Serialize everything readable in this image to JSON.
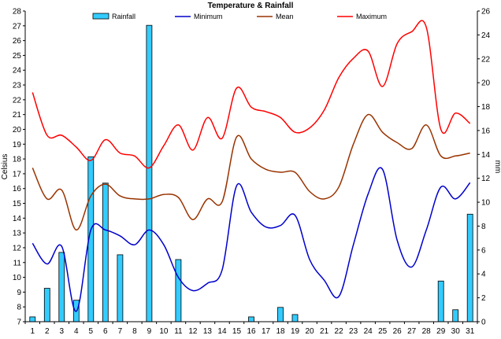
{
  "chart_data": {
    "type": "bar+line",
    "title": "Temperature & Rainfall",
    "ylabel_left": "Celsius",
    "ylabel_right": "mm",
    "categories": [
      "1",
      "2",
      "3",
      "4",
      "5",
      "6",
      "7",
      "8",
      "9",
      "10",
      "11",
      "12",
      "13",
      "14",
      "15",
      "16",
      "17",
      "18",
      "19",
      "20",
      "21",
      "22",
      "23",
      "24",
      "25",
      "26",
      "27",
      "28",
      "29",
      "30",
      "31"
    ],
    "ylim_left": [
      7,
      28
    ],
    "ylim_right": [
      0,
      26
    ],
    "yticks_left": [
      "7",
      "8",
      "9",
      "10",
      "11",
      "12",
      "13",
      "14",
      "15",
      "16",
      "17",
      "18",
      "19",
      "20",
      "21",
      "22",
      "23",
      "24",
      "25",
      "26",
      "27",
      "28"
    ],
    "yticks_right": [
      "0",
      "2",
      "4",
      "6",
      "8",
      "10",
      "12",
      "14",
      "16",
      "18",
      "20",
      "22",
      "24",
      "26"
    ],
    "grid": false,
    "legend_position": "top",
    "rainfall": {
      "name": "Rainfall",
      "axis": "right",
      "color": "#33ccff",
      "values": [
        0.4,
        2.8,
        5.8,
        1.8,
        13.8,
        11.6,
        5.6,
        0,
        24.8,
        0,
        5.2,
        0,
        0,
        0,
        0,
        0.4,
        0,
        1.2,
        0.6,
        0,
        0,
        0,
        0,
        0,
        0,
        0,
        0,
        0,
        3.4,
        1.0,
        9.0
      ]
    },
    "series": [
      {
        "name": "Minimum",
        "color": "#0000cc",
        "values": [
          12.3,
          10.9,
          12.1,
          7.7,
          13.2,
          13.2,
          12.8,
          12.2,
          13.2,
          12.2,
          10.0,
          9.1,
          9.6,
          10.5,
          16.2,
          14.4,
          13.4,
          13.5,
          14.2,
          11.2,
          9.8,
          8.7,
          12.2,
          15.6,
          17.3,
          12.5,
          10.7,
          13.2,
          16.1,
          15.3,
          16.4
        ]
      },
      {
        "name": "Mean",
        "color": "#993300",
        "values": [
          17.4,
          15.3,
          15.9,
          13.2,
          15.5,
          16.3,
          15.5,
          15.3,
          15.3,
          15.6,
          15.4,
          13.9,
          15.3,
          15.1,
          19.5,
          18.0,
          17.3,
          17.1,
          17.1,
          15.8,
          15.3,
          16.1,
          19.0,
          21.0,
          19.8,
          19.1,
          18.7,
          20.3,
          18.2,
          18.2,
          18.4
        ]
      },
      {
        "name": "Maximum",
        "color": "#ff0000",
        "values": [
          22.5,
          19.6,
          19.6,
          18.8,
          17.9,
          19.3,
          18.4,
          18.2,
          17.4,
          18.9,
          20.3,
          18.6,
          20.8,
          19.4,
          22.8,
          21.5,
          21.2,
          20.8,
          19.8,
          20.1,
          21.3,
          23.5,
          24.8,
          25.3,
          22.9,
          25.8,
          26.6,
          26.9,
          20.0,
          21.1,
          20.4
        ]
      }
    ]
  }
}
